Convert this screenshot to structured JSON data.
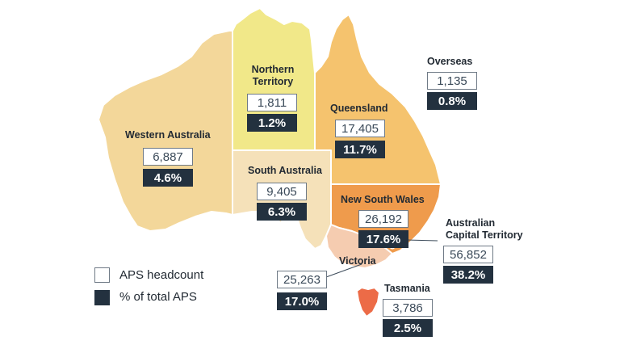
{
  "colors": {
    "western_australia": "#f3d79a",
    "northern_territory": "#f1e889",
    "south_australia": "#f5e1b9",
    "queensland": "#f5c36e",
    "new_south_wales": "#ef9b4c",
    "victoria": "#f5ccb0",
    "tasmania": "#ec6b47",
    "headcount_box": "#ffffff",
    "percent_box": "#23313f"
  },
  "regions": {
    "northern_territory": {
      "name": "Northern\nTerritory",
      "headcount": "1,811",
      "percent": "1.2%"
    },
    "western_australia": {
      "name": "Western Australia",
      "headcount": "6,887",
      "percent": "4.6%"
    },
    "queensland": {
      "name": "Queensland",
      "headcount": "17,405",
      "percent": "11.7%"
    },
    "south_australia": {
      "name": "South Australia",
      "headcount": "9,405",
      "percent": "6.3%"
    },
    "new_south_wales": {
      "name": "New South Wales",
      "headcount": "26,192",
      "percent": "17.6%"
    },
    "victoria": {
      "name": "Victoria",
      "headcount": "25,263",
      "percent": "17.0%"
    },
    "act": {
      "name": "Australian\nCapital Territory",
      "headcount": "56,852",
      "percent": "38.2%"
    },
    "tasmania": {
      "name": "Tasmania",
      "headcount": "3,786",
      "percent": "2.5%"
    },
    "overseas": {
      "name": "Overseas",
      "headcount": "1,135",
      "percent": "0.8%"
    }
  },
  "legend": {
    "headcount_label": "APS headcount",
    "percent_label": "% of total APS"
  }
}
